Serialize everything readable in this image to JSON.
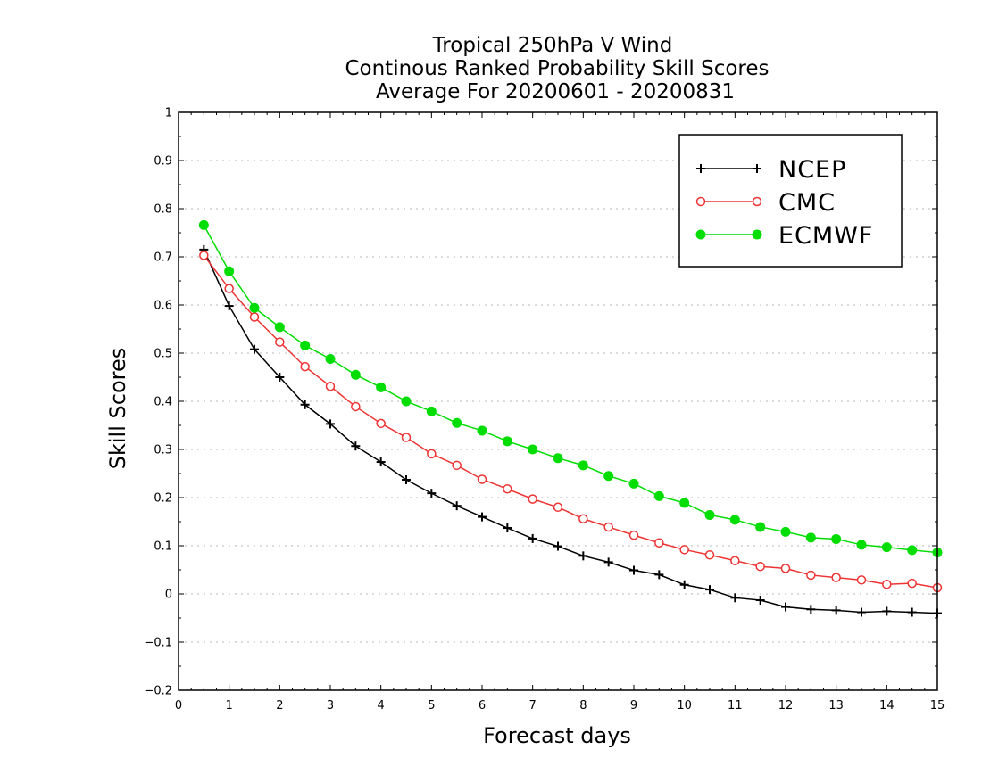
{
  "chart_data": {
    "type": "line",
    "title_lines": [
      "Tropical 250hPa V Wind",
      "Continous Ranked Probability Skill Scores",
      "Average For 20200601 - 20200831"
    ],
    "xlabel": "Forecast days",
    "ylabel": "Skill Scores",
    "xlim": [
      0,
      15
    ],
    "ylim": [
      -0.2,
      1
    ],
    "xticks": [
      "0",
      "1",
      "2",
      "3",
      "4",
      "5",
      "6",
      "7",
      "8",
      "9",
      "10",
      "11",
      "12",
      "13",
      "14",
      "15"
    ],
    "yticks": [
      "-0.2",
      "-0.1",
      "0",
      "0.1",
      "0.2",
      "0.3",
      "0.4",
      "0.5",
      "0.6",
      "0.7",
      "0.8",
      "0.9",
      "1"
    ],
    "grid": "horizontal dotted",
    "legend_position": "top-right",
    "x": [
      0.5,
      1,
      1.5,
      2,
      2.5,
      3,
      3.5,
      4,
      4.5,
      5,
      5.5,
      6,
      6.5,
      7,
      7.5,
      8,
      8.5,
      9,
      9.5,
      10,
      10.5,
      11,
      11.5,
      12,
      12.5,
      13,
      13.5,
      14,
      14.5,
      15
    ],
    "series": [
      {
        "name": "NCEP",
        "color": "#000000",
        "marker": "plus",
        "values": [
          0.715,
          0.598,
          0.508,
          0.45,
          0.393,
          0.353,
          0.307,
          0.274,
          0.237,
          0.209,
          0.183,
          0.16,
          0.137,
          0.115,
          0.099,
          0.079,
          0.066,
          0.049,
          0.04,
          0.019,
          0.009,
          -0.008,
          -0.013,
          -0.027,
          -0.032,
          -0.034,
          -0.038,
          -0.036,
          -0.038,
          -0.04
        ]
      },
      {
        "name": "CMC",
        "color": "#ee3333",
        "marker": "open-circle",
        "values": [
          0.703,
          0.634,
          0.575,
          0.523,
          0.472,
          0.431,
          0.389,
          0.354,
          0.325,
          0.291,
          0.267,
          0.238,
          0.218,
          0.197,
          0.18,
          0.156,
          0.139,
          0.122,
          0.106,
          0.092,
          0.081,
          0.069,
          0.057,
          0.053,
          0.039,
          0.034,
          0.029,
          0.02,
          0.022,
          0.013
        ]
      },
      {
        "name": "ECMWF",
        "color": "#00dd00",
        "marker": "filled-circle",
        "values": [
          0.766,
          0.67,
          0.594,
          0.554,
          0.516,
          0.488,
          0.455,
          0.429,
          0.4,
          0.379,
          0.355,
          0.339,
          0.317,
          0.3,
          0.282,
          0.267,
          0.245,
          0.229,
          0.203,
          0.189,
          0.164,
          0.154,
          0.139,
          0.129,
          0.117,
          0.114,
          0.102,
          0.097,
          0.091,
          0.086
        ]
      }
    ]
  }
}
